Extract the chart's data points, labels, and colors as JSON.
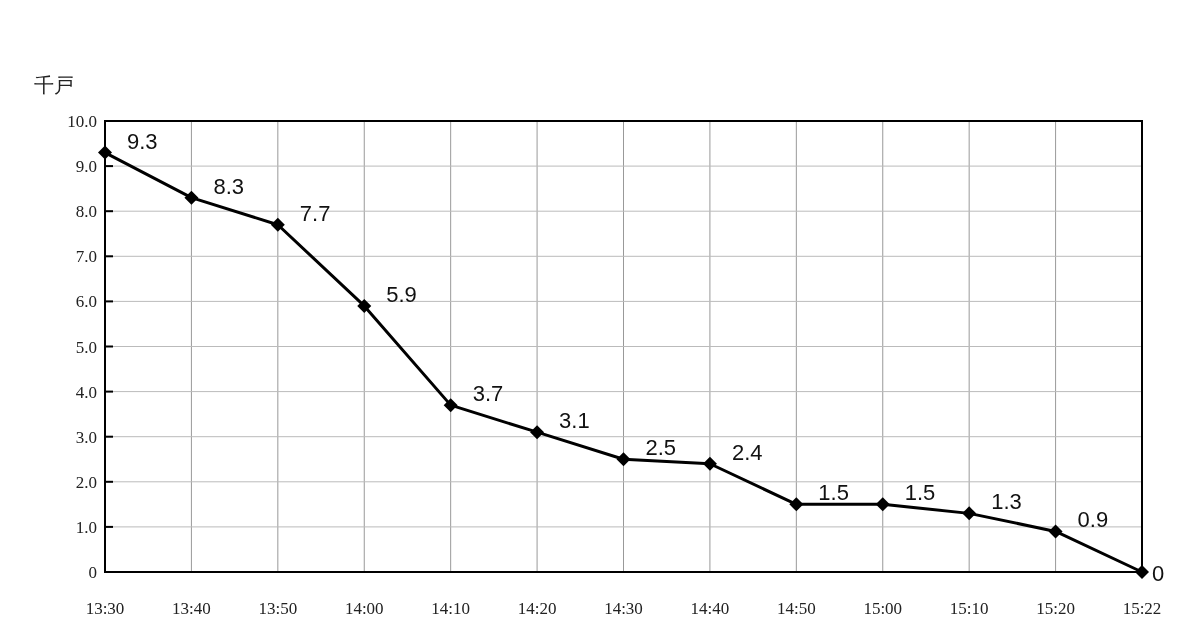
{
  "chart_data": {
    "type": "line",
    "ylabel": "千戸",
    "categories": [
      "13:30",
      "13:40",
      "13:50",
      "14:00",
      "14:10",
      "14:20",
      "14:30",
      "14:40",
      "14:50",
      "15:00",
      "15:10",
      "15:20",
      "15:22"
    ],
    "series": [
      {
        "color": "#000000",
        "values": [
          9.3,
          8.3,
          7.7,
          5.9,
          3.7,
          3.1,
          2.5,
          2.4,
          1.5,
          1.5,
          1.3,
          0.9,
          0
        ]
      }
    ],
    "ylim": [
      0,
      10
    ],
    "yticks": [
      {
        "value": 0,
        "label": "0"
      },
      {
        "value": 1,
        "label": "1.0"
      },
      {
        "value": 2,
        "label": "2.0"
      },
      {
        "value": 3,
        "label": "3.0"
      },
      {
        "value": 4,
        "label": "4.0"
      },
      {
        "value": 5,
        "label": "5.0"
      },
      {
        "value": 6,
        "label": "6.0"
      },
      {
        "value": 7,
        "label": "7.0"
      },
      {
        "value": 8,
        "label": "8.0"
      },
      {
        "value": 9,
        "label": "9.0"
      },
      {
        "value": 10,
        "label": "10.0"
      }
    ],
    "grid": true,
    "marker": "diamond",
    "line_style": "solid",
    "data_labels": true
  }
}
